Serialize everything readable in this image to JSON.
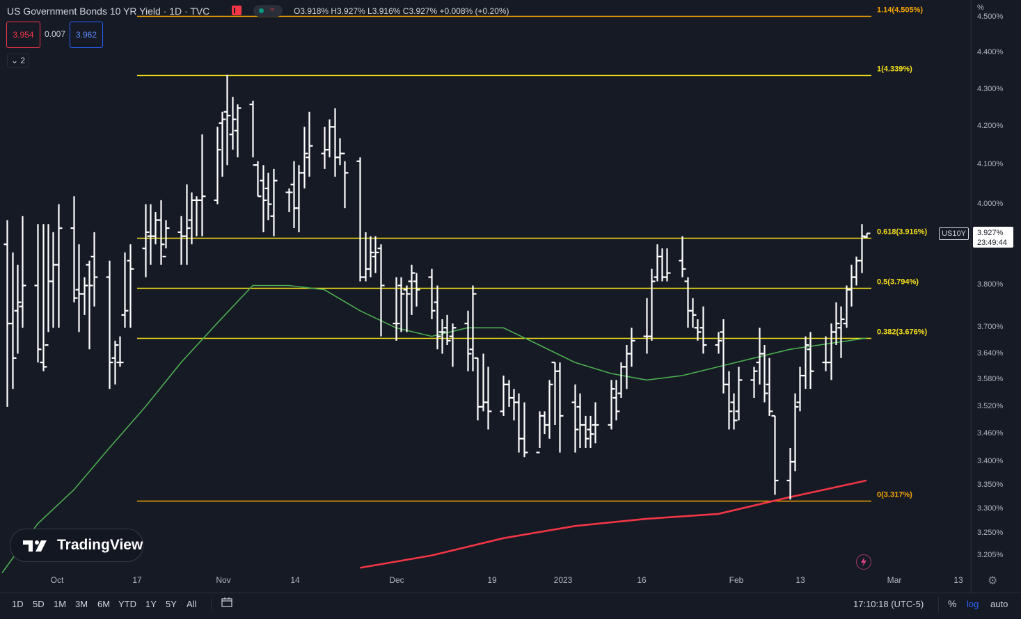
{
  "header": {
    "title": "US Government Bonds 10 YR Yield · 1D · TVC",
    "ohlc_text": "O3.918% H3.927% L3.916% C3.927% +0.008% (+0.20%)",
    "status_waves": "≈"
  },
  "quote": {
    "bid": "3.954",
    "spread": "0.007",
    "ask": "3.962"
  },
  "indicators_toggle": "⌄ 2",
  "price_axis": {
    "unit_label": "%",
    "ticks": [
      "4.500%",
      "4.400%",
      "4.300%",
      "4.200%",
      "4.100%",
      "4.000%",
      "3.800%",
      "3.700%",
      "3.640%",
      "3.580%",
      "3.520%",
      "3.460%",
      "3.400%",
      "3.350%",
      "3.300%",
      "3.250%",
      "3.205%"
    ],
    "symbol": "US10Y",
    "last_price": "3.927%",
    "countdown": "23:49:44"
  },
  "time_axis": {
    "ticks": [
      "Oct",
      "17",
      "Nov",
      "14",
      "Dec",
      "19",
      "2023",
      "16",
      "Feb",
      "13",
      "Mar",
      "13"
    ]
  },
  "fibonacci": [
    {
      "label": "1.14(4.505%)",
      "level": 4.505,
      "color": "#f7a600"
    },
    {
      "label": "1(4.339%)",
      "level": 4.339,
      "color": "#f7e11a"
    },
    {
      "label": "0.618(3.916%)",
      "level": 3.916,
      "color": "#f7e11a"
    },
    {
      "label": "0.5(3.794%)",
      "level": 3.794,
      "color": "#f7e11a"
    },
    {
      "label": "0.382(3.676%)",
      "level": 3.676,
      "color": "#f7e11a"
    },
    {
      "label": "0(3.317%)",
      "level": 3.317,
      "color": "#f7a600"
    }
  ],
  "bottom_toolbar": {
    "ranges": [
      "1D",
      "5D",
      "1M",
      "3M",
      "6M",
      "YTD",
      "1Y",
      "5Y",
      "All"
    ],
    "clock": "17:10:18 (UTC-5)",
    "pct": "%",
    "log": "log",
    "auto": "auto"
  },
  "logo": {
    "text": "TradingView"
  },
  "chart_data": {
    "type": "ohlc",
    "title": "US Government Bonds 10 YR Yield · 1D · TVC",
    "y_scale": "log",
    "ylim": [
      3.175,
      4.55
    ],
    "x_start_date": "2022-09-26",
    "x_end_date": "2023-03-14",
    "colors": {
      "bars": "#ffffff",
      "ma_green": "#4caf50",
      "ma_red": "#f23645"
    },
    "bars": [
      {
        "date": "2022-09-27",
        "o": 3.9,
        "h": 3.96,
        "l": 3.52,
        "c": 3.71
      },
      {
        "date": "2022-09-28",
        "o": 3.71,
        "h": 3.88,
        "l": 3.56,
        "c": 3.63
      },
      {
        "date": "2022-09-29",
        "o": 3.74,
        "h": 3.85,
        "l": 3.64,
        "c": 3.76
      },
      {
        "date": "2022-09-30",
        "o": 3.75,
        "h": 3.97,
        "l": 3.7,
        "c": 3.8
      },
      {
        "date": "2022-10-03",
        "o": 3.8,
        "h": 3.95,
        "l": 3.62,
        "c": 3.65
      },
      {
        "date": "2022-10-04",
        "o": 3.62,
        "h": 3.95,
        "l": 3.6,
        "c": 3.61
      },
      {
        "date": "2022-10-05",
        "o": 3.66,
        "h": 3.95,
        "l": 3.69,
        "c": 3.81
      },
      {
        "date": "2022-10-06",
        "o": 3.81,
        "h": 3.93,
        "l": 3.7,
        "c": 3.85
      },
      {
        "date": "2022-10-07",
        "o": 3.85,
        "h": 4.0,
        "l": 3.7,
        "c": 3.94
      },
      {
        "date": "2022-10-10",
        "o": 3.94,
        "h": 4.02,
        "l": 3.76,
        "c": 3.77
      },
      {
        "date": "2022-10-11",
        "o": 3.79,
        "h": 3.9,
        "l": 3.69,
        "c": 3.78
      },
      {
        "date": "2022-10-12",
        "o": 3.78,
        "h": 3.82,
        "l": 3.73,
        "c": 3.8
      },
      {
        "date": "2022-10-13",
        "o": 3.85,
        "h": 3.86,
        "l": 3.65,
        "c": 3.8
      },
      {
        "date": "2022-10-14",
        "o": 3.87,
        "h": 3.93,
        "l": 3.75,
        "c": 3.82
      },
      {
        "date": "2022-10-17",
        "o": 3.82,
        "h": 3.86,
        "l": 3.56,
        "c": 3.62
      },
      {
        "date": "2022-10-18",
        "o": 3.63,
        "h": 3.67,
        "l": 3.57,
        "c": 3.66
      },
      {
        "date": "2022-10-19",
        "o": 3.62,
        "h": 3.68,
        "l": 3.61,
        "c": 3.62
      },
      {
        "date": "2022-10-20",
        "o": 3.73,
        "h": 3.88,
        "l": 3.7,
        "c": 3.74
      },
      {
        "date": "2022-10-21",
        "o": 3.86,
        "h": 3.9,
        "l": 3.7,
        "c": 3.84
      },
      {
        "date": "2022-10-24",
        "o": 3.89,
        "h": 4.0,
        "l": 3.82,
        "c": 3.93
      },
      {
        "date": "2022-10-25",
        "o": 3.92,
        "h": 4.0,
        "l": 3.85,
        "c": 3.92
      },
      {
        "date": "2022-10-26",
        "o": 3.92,
        "h": 3.98,
        "l": 3.9,
        "c": 3.96
      },
      {
        "date": "2022-10-27",
        "o": 3.96,
        "h": 4.01,
        "l": 3.85,
        "c": 3.9
      },
      {
        "date": "2022-10-28",
        "o": 3.87,
        "h": 3.96,
        "l": 3.89,
        "c": 3.94
      },
      {
        "date": "2022-10-31",
        "o": 3.93,
        "h": 3.97,
        "l": 3.85,
        "c": 3.92
      },
      {
        "date": "2022-11-01",
        "o": 3.92,
        "h": 4.05,
        "l": 3.85,
        "c": 3.94
      },
      {
        "date": "2022-11-02",
        "o": 3.96,
        "h": 4.03,
        "l": 3.9,
        "c": 4.01
      },
      {
        "date": "2022-11-03",
        "o": 4.01,
        "h": 4.02,
        "l": 3.92,
        "c": 4.01
      },
      {
        "date": "2022-11-04",
        "o": 4.01,
        "h": 4.18,
        "l": 3.92,
        "c": 4.02
      },
      {
        "date": "2022-11-07",
        "o": 4.01,
        "h": 4.2,
        "l": 4.0,
        "c": 4.14
      },
      {
        "date": "2022-11-08",
        "o": 4.21,
        "h": 4.24,
        "l": 4.07,
        "c": 4.22
      },
      {
        "date": "2022-11-09",
        "o": 4.24,
        "h": 4.34,
        "l": 4.1,
        "c": 4.23
      },
      {
        "date": "2022-11-10",
        "o": 4.18,
        "h": 4.28,
        "l": 4.14,
        "c": 4.22
      },
      {
        "date": "2022-11-11",
        "o": 4.19,
        "h": 4.26,
        "l": 4.12,
        "c": 4.25
      },
      {
        "date": "2022-11-14",
        "o": 4.26,
        "h": 4.27,
        "l": 4.12,
        "c": 4.1
      },
      {
        "date": "2022-11-15",
        "o": 4.1,
        "h": 4.11,
        "l": 4.02,
        "c": 4.02
      },
      {
        "date": "2022-11-16",
        "o": 4.06,
        "h": 4.1,
        "l": 3.93,
        "c": 4.01
      },
      {
        "date": "2022-11-17",
        "o": 4.04,
        "h": 4.08,
        "l": 3.96,
        "c": 4.0
      },
      {
        "date": "2022-11-18",
        "o": 3.97,
        "h": 4.09,
        "l": 3.92,
        "c": 4.06
      },
      {
        "date": "2022-11-21",
        "o": 4.03,
        "h": 4.04,
        "l": 3.98,
        "c": 4.03
      },
      {
        "date": "2022-11-22",
        "o": 4.05,
        "h": 4.11,
        "l": 3.94,
        "c": 3.99
      },
      {
        "date": "2022-11-23",
        "o": 3.99,
        "h": 4.1,
        "l": 3.93,
        "c": 4.08
      },
      {
        "date": "2022-11-24",
        "o": 4.08,
        "h": 4.2,
        "l": 4.04,
        "c": 4.13
      },
      {
        "date": "2022-11-25",
        "o": 4.12,
        "h": 4.24,
        "l": 4.07,
        "c": 4.15
      },
      {
        "date": "2022-11-28",
        "o": 4.13,
        "h": 4.2,
        "l": 4.09,
        "c": 4.14
      },
      {
        "date": "2022-11-29",
        "o": 4.14,
        "h": 4.22,
        "l": 4.12,
        "c": 4.2
      },
      {
        "date": "2022-11-30",
        "o": 4.2,
        "h": 4.25,
        "l": 4.07,
        "c": 4.12
      },
      {
        "date": "2022-12-01",
        "o": 4.12,
        "h": 4.17,
        "l": 4.1,
        "c": 4.13
      },
      {
        "date": "2022-12-02",
        "o": 4.13,
        "h": 4.11,
        "l": 3.99,
        "c": 4.08
      },
      {
        "date": "2022-12-05",
        "o": 4.11,
        "h": 4.12,
        "l": 3.81,
        "c": 3.82
      },
      {
        "date": "2022-12-06",
        "o": 3.82,
        "h": 3.93,
        "l": 3.81,
        "c": 3.84
      },
      {
        "date": "2022-12-07",
        "o": 3.84,
        "h": 3.92,
        "l": 3.82,
        "c": 3.88
      },
      {
        "date": "2022-12-08",
        "o": 3.87,
        "h": 3.92,
        "l": 3.83,
        "c": 3.88
      },
      {
        "date": "2022-12-09",
        "o": 3.89,
        "h": 3.9,
        "l": 3.68,
        "c": 3.8
      },
      {
        "date": "2022-12-12",
        "o": 3.71,
        "h": 3.82,
        "l": 3.67,
        "c": 3.71
      },
      {
        "date": "2022-12-13",
        "o": 3.8,
        "h": 3.82,
        "l": 3.69,
        "c": 3.78
      },
      {
        "date": "2022-12-14",
        "o": 3.79,
        "h": 3.8,
        "l": 3.69,
        "c": 3.78
      },
      {
        "date": "2022-12-15",
        "o": 3.81,
        "h": 3.85,
        "l": 3.73,
        "c": 3.83
      },
      {
        "date": "2022-12-16",
        "o": 3.81,
        "h": 3.83,
        "l": 3.75,
        "c": 3.79
      },
      {
        "date": "2022-12-19",
        "o": 3.82,
        "h": 3.84,
        "l": 3.72,
        "c": 3.74
      },
      {
        "date": "2022-12-20",
        "o": 3.76,
        "h": 3.8,
        "l": 3.65,
        "c": 3.68
      },
      {
        "date": "2022-12-21",
        "o": 3.69,
        "h": 3.72,
        "l": 3.64,
        "c": 3.69
      },
      {
        "date": "2022-12-22",
        "o": 3.7,
        "h": 3.73,
        "l": 3.66,
        "c": 3.67
      },
      {
        "date": "2022-12-23",
        "o": 3.68,
        "h": 3.71,
        "l": 3.61,
        "c": 3.7
      },
      {
        "date": "2022-12-26",
        "o": 3.71,
        "h": 3.74,
        "l": 3.6,
        "c": 3.64
      },
      {
        "date": "2022-12-27",
        "o": 3.65,
        "h": 3.8,
        "l": 3.6,
        "c": 3.78
      },
      {
        "date": "2022-12-28",
        "o": 3.63,
        "h": 3.63,
        "l": 3.49,
        "c": 3.52
      },
      {
        "date": "2022-12-29",
        "o": 3.52,
        "h": 3.64,
        "l": 3.51,
        "c": 3.53
      },
      {
        "date": "2022-12-30",
        "o": 3.53,
        "h": 3.61,
        "l": 3.47,
        "c": 3.51
      },
      {
        "date": "2023-01-02",
        "o": 3.51,
        "h": 3.59,
        "l": 3.5,
        "c": 3.57
      },
      {
        "date": "2023-01-03",
        "o": 3.57,
        "h": 3.58,
        "l": 3.52,
        "c": 3.54
      },
      {
        "date": "2023-01-04",
        "o": 3.54,
        "h": 3.56,
        "l": 3.49,
        "c": 3.53
      },
      {
        "date": "2023-01-05",
        "o": 3.53,
        "h": 3.55,
        "l": 3.42,
        "c": 3.45
      },
      {
        "date": "2023-01-06",
        "o": 3.45,
        "h": 3.53,
        "l": 3.41,
        "c": 3.42
      },
      {
        "date": "2023-01-09",
        "o": 3.42,
        "h": 3.51,
        "l": 3.43,
        "c": 3.5
      },
      {
        "date": "2023-01-10",
        "o": 3.5,
        "h": 3.51,
        "l": 3.46,
        "c": 3.48
      },
      {
        "date": "2023-01-11",
        "o": 3.48,
        "h": 3.58,
        "l": 3.45,
        "c": 3.57
      },
      {
        "date": "2023-01-12",
        "o": 3.62,
        "h": 3.62,
        "l": 3.48,
        "c": 3.6
      },
      {
        "date": "2023-01-13",
        "o": 3.6,
        "h": 3.62,
        "l": 3.42,
        "c": 3.5
      },
      {
        "date": "2023-01-16",
        "o": 3.53,
        "h": 3.57,
        "l": 3.42,
        "c": 3.47
      },
      {
        "date": "2023-01-17",
        "o": 3.52,
        "h": 3.55,
        "l": 3.43,
        "c": 3.48
      },
      {
        "date": "2023-01-18",
        "o": 3.48,
        "h": 3.5,
        "l": 3.43,
        "c": 3.45
      },
      {
        "date": "2023-01-19",
        "o": 3.47,
        "h": 3.5,
        "l": 3.43,
        "c": 3.46
      },
      {
        "date": "2023-01-20",
        "o": 3.48,
        "h": 3.53,
        "l": 3.44,
        "c": 3.48
      },
      {
        "date": "2023-01-23",
        "o": 3.48,
        "h": 3.58,
        "l": 3.47,
        "c": 3.56
      },
      {
        "date": "2023-01-24",
        "o": 3.54,
        "h": 3.58,
        "l": 3.49,
        "c": 3.51
      },
      {
        "date": "2023-01-25",
        "o": 3.55,
        "h": 3.62,
        "l": 3.54,
        "c": 3.61
      },
      {
        "date": "2023-01-26",
        "o": 3.61,
        "h": 3.66,
        "l": 3.56,
        "c": 3.64
      },
      {
        "date": "2023-01-27",
        "o": 3.64,
        "h": 3.7,
        "l": 3.61,
        "c": 3.67
      },
      {
        "date": "2023-01-30",
        "o": 3.68,
        "h": 3.77,
        "l": 3.64,
        "c": 3.68
      },
      {
        "date": "2023-01-31",
        "o": 3.68,
        "h": 3.84,
        "l": 3.67,
        "c": 3.81
      },
      {
        "date": "2023-02-01",
        "o": 3.82,
        "h": 3.9,
        "l": 3.81,
        "c": 3.87
      },
      {
        "date": "2023-02-02",
        "o": 3.87,
        "h": 3.89,
        "l": 3.81,
        "c": 3.82
      },
      {
        "date": "2023-02-03",
        "o": 3.82,
        "h": 3.89,
        "l": 3.81,
        "c": 3.83
      },
      {
        "date": "2023-02-06",
        "o": 3.86,
        "h": 3.92,
        "l": 3.82,
        "c": 3.84
      },
      {
        "date": "2023-02-07",
        "o": 3.81,
        "h": 3.82,
        "l": 3.7,
        "c": 3.74
      },
      {
        "date": "2023-02-08",
        "o": 3.74,
        "h": 3.77,
        "l": 3.7,
        "c": 3.73
      },
      {
        "date": "2023-02-09",
        "o": 3.7,
        "h": 3.72,
        "l": 3.67,
        "c": 3.69
      },
      {
        "date": "2023-02-10",
        "o": 3.7,
        "h": 3.75,
        "l": 3.64,
        "c": 3.66
      },
      {
        "date": "2023-02-13",
        "o": 3.66,
        "h": 3.69,
        "l": 3.64,
        "c": 3.67
      },
      {
        "date": "2023-02-14",
        "o": 3.69,
        "h": 3.72,
        "l": 3.55,
        "c": 3.57
      },
      {
        "date": "2023-02-15",
        "o": 3.57,
        "h": 3.6,
        "l": 3.47,
        "c": 3.51
      },
      {
        "date": "2023-02-16",
        "o": 3.53,
        "h": 3.55,
        "l": 3.47,
        "c": 3.49
      },
      {
        "date": "2023-02-17",
        "o": 3.51,
        "h": 3.61,
        "l": 3.49,
        "c": 3.58
      },
      {
        "date": "2023-02-20",
        "o": 3.58,
        "h": 3.61,
        "l": 3.54,
        "c": 3.6
      },
      {
        "date": "2023-02-21",
        "o": 3.62,
        "h": 3.7,
        "l": 3.57,
        "c": 3.64
      },
      {
        "date": "2023-02-22",
        "o": 3.64,
        "h": 3.66,
        "l": 3.53,
        "c": 3.55
      },
      {
        "date": "2023-02-23",
        "o": 3.57,
        "h": 3.63,
        "l": 3.5,
        "c": 3.51
      },
      {
        "date": "2023-02-24",
        "o": 3.5,
        "h": 3.5,
        "l": 3.33,
        "c": 3.36
      },
      {
        "date": "2023-02-27",
        "o": 3.36,
        "h": 3.43,
        "l": 3.32,
        "c": 3.4
      },
      {
        "date": "2023-02-28",
        "o": 3.4,
        "h": 3.55,
        "l": 3.38,
        "c": 3.52
      },
      {
        "date": "2023-03-01",
        "o": 3.53,
        "h": 3.61,
        "l": 3.51,
        "c": 3.59
      },
      {
        "date": "2023-03-02",
        "o": 3.59,
        "h": 3.68,
        "l": 3.56,
        "c": 3.66
      },
      {
        "date": "2023-03-03",
        "o": 3.65,
        "h": 3.69,
        "l": 3.56,
        "c": 3.6
      },
      {
        "date": "2023-03-06",
        "o": 3.62,
        "h": 3.68,
        "l": 3.6,
        "c": 3.62
      },
      {
        "date": "2023-03-07",
        "o": 3.62,
        "h": 3.71,
        "l": 3.58,
        "c": 3.69
      },
      {
        "date": "2023-03-08",
        "o": 3.69,
        "h": 3.76,
        "l": 3.66,
        "c": 3.71
      },
      {
        "date": "2023-03-09",
        "o": 3.7,
        "h": 3.75,
        "l": 3.63,
        "c": 3.72
      },
      {
        "date": "2023-03-10",
        "o": 3.71,
        "h": 3.8,
        "l": 3.7,
        "c": 3.79
      },
      {
        "date": "2023-03-11",
        "o": 3.79,
        "h": 3.85,
        "l": 3.75,
        "c": 3.82
      },
      {
        "date": "2023-03-12",
        "o": 3.82,
        "h": 3.87,
        "l": 3.8,
        "c": 3.86
      },
      {
        "date": "2023-03-13",
        "o": 3.86,
        "h": 3.95,
        "l": 3.83,
        "c": 3.92
      },
      {
        "date": "2023-03-14",
        "o": 3.918,
        "h": 3.927,
        "l": 3.916,
        "c": 3.927
      }
    ],
    "ma_green": [
      {
        "date": "2022-09-26",
        "v": 3.17
      },
      {
        "date": "2022-10-03",
        "v": 3.27
      },
      {
        "date": "2022-10-10",
        "v": 3.34
      },
      {
        "date": "2022-10-17",
        "v": 3.43
      },
      {
        "date": "2022-10-24",
        "v": 3.52
      },
      {
        "date": "2022-10-31",
        "v": 3.62
      },
      {
        "date": "2022-11-07",
        "v": 3.71
      },
      {
        "date": "2022-11-14",
        "v": 3.8
      },
      {
        "date": "2022-11-21",
        "v": 3.8
      },
      {
        "date": "2022-11-28",
        "v": 3.79
      },
      {
        "date": "2022-12-05",
        "v": 3.74
      },
      {
        "date": "2022-12-12",
        "v": 3.7
      },
      {
        "date": "2022-12-19",
        "v": 3.68
      },
      {
        "date": "2022-12-26",
        "v": 3.7
      },
      {
        "date": "2023-01-02",
        "v": 3.7
      },
      {
        "date": "2023-01-09",
        "v": 3.66
      },
      {
        "date": "2023-01-16",
        "v": 3.62
      },
      {
        "date": "2023-01-23",
        "v": 3.595
      },
      {
        "date": "2023-01-30",
        "v": 3.58
      },
      {
        "date": "2023-02-06",
        "v": 3.59
      },
      {
        "date": "2023-02-13",
        "v": 3.61
      },
      {
        "date": "2023-02-20",
        "v": 3.63
      },
      {
        "date": "2023-02-27",
        "v": 3.65
      },
      {
        "date": "2023-03-14",
        "v": 3.676
      }
    ],
    "ma_red": [
      {
        "date": "2022-12-05",
        "v": 3.18
      },
      {
        "date": "2022-12-19",
        "v": 3.205
      },
      {
        "date": "2023-01-02",
        "v": 3.24
      },
      {
        "date": "2023-01-16",
        "v": 3.265
      },
      {
        "date": "2023-01-30",
        "v": 3.28
      },
      {
        "date": "2023-02-13",
        "v": 3.29
      },
      {
        "date": "2023-02-27",
        "v": 3.325
      },
      {
        "date": "2023-03-14",
        "v": 3.36
      }
    ]
  }
}
